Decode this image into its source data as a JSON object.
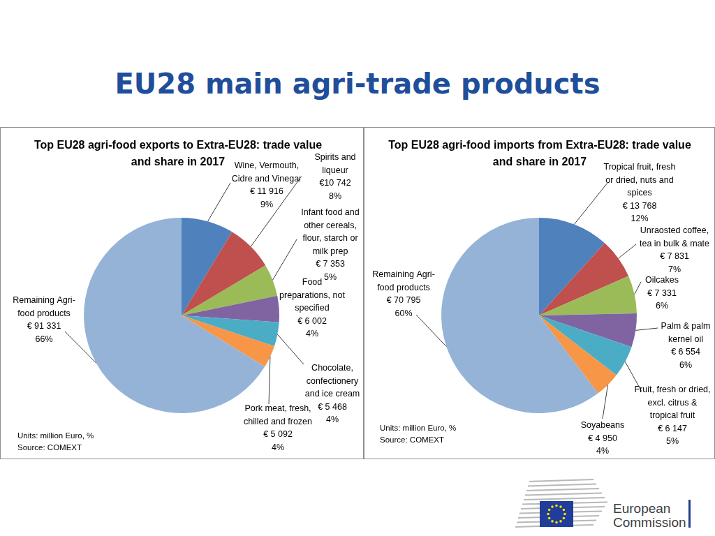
{
  "header": {
    "title": "EU28 main agri-trade products"
  },
  "chart_data": [
    {
      "type": "pie",
      "title": "Top EU28 agri-food exports to Extra-EU28: trade value and share in 2017",
      "categories": [
        "Wine, Vermouth, Cidre and Vinegar",
        "Spirits and liqueur",
        "Infant food and other cereals, flour, starch or milk prep",
        "Food preparations, not specified",
        "Chocolate, confectionery and ice cream",
        "Pork meat, fresh, chilled and frozen",
        "Remaining Agri-food products"
      ],
      "values": [
        11916,
        10742,
        7353,
        6002,
        5468,
        5092,
        91331
      ],
      "value_labels": [
        "€ 11 916",
        "€10 742",
        "€ 7 353",
        "€ 6 002",
        "€ 5 468",
        "€ 5 092",
        "€ 91 331"
      ],
      "shares": [
        9,
        8,
        5,
        4,
        4,
        4,
        66
      ],
      "share_labels": [
        "9%",
        "8%",
        "5%",
        "4%",
        "4%",
        "4%",
        "66%"
      ],
      "colors": [
        "#4f81bd",
        "#c0504d",
        "#9bbb59",
        "#8064a2",
        "#4bacc6",
        "#f79646",
        "#95b3d7"
      ],
      "data_labels": true,
      "units": "Units: million Euro, %",
      "source": "Source: COMEXT"
    },
    {
      "type": "pie",
      "title": "Top EU28 agri-food imports from Extra-EU28: trade value and share in 2017",
      "categories": [
        "Tropical fruit, fresh or dried, nuts and spices",
        "Unraosted coffee, tea in bulk & mate",
        "Oilcakes",
        "Palm & palm kernel oil",
        "Fruit, fresh or dried, excl. citrus & tropical fruit",
        "Soyabeans",
        "Remaining Agri-food products"
      ],
      "values": [
        13768,
        7831,
        7331,
        6554,
        6147,
        4950,
        70795
      ],
      "value_labels": [
        "€ 13 768",
        "€ 7 831",
        "€ 7 331",
        "€ 6 554",
        "€ 6 147",
        "€ 4 950",
        "€ 70 795"
      ],
      "shares": [
        12,
        7,
        6,
        6,
        5,
        4,
        60
      ],
      "share_labels": [
        "12%",
        "7%",
        "6%",
        "6%",
        "5%",
        "4%",
        "60%"
      ],
      "colors": [
        "#4f81bd",
        "#c0504d",
        "#9bbb59",
        "#8064a2",
        "#4bacc6",
        "#f79646",
        "#95b3d7"
      ],
      "data_labels": true,
      "units": "Units: million Euro, %",
      "source": "Source: COMEXT"
    }
  ],
  "logo": {
    "text": [
      "European",
      "Commission"
    ]
  }
}
